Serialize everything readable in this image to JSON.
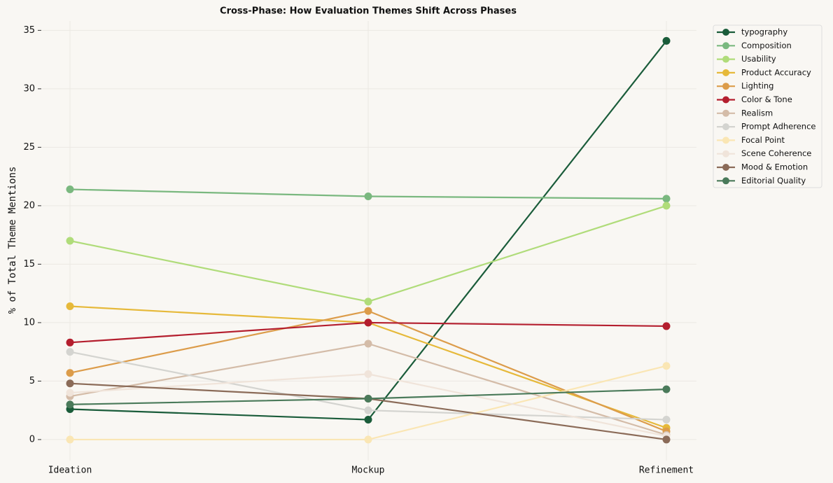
{
  "chart_data": {
    "type": "line",
    "title": "Cross-Phase: How Evaluation Themes Shift Across Phases",
    "y_label": "% of Total Theme Mentions",
    "categories": [
      "Ideation",
      "Mockup",
      "Refinement"
    ],
    "ylim": [
      -1.8,
      35.8
    ],
    "yticks": [
      0,
      5,
      10,
      15,
      20,
      25,
      30,
      35
    ],
    "grid": true,
    "legend": "outside-right",
    "series": [
      {
        "name": "typography",
        "color": "#1a5c3a",
        "values": [
          2.6,
          1.7,
          34.1
        ]
      },
      {
        "name": "Composition",
        "color": "#7ab87f",
        "values": [
          21.4,
          20.8,
          20.6
        ]
      },
      {
        "name": "Usability",
        "color": "#b0dc7a",
        "values": [
          17.0,
          11.8,
          20.0
        ]
      },
      {
        "name": "Product Accuracy",
        "color": "#e6b93a",
        "values": [
          11.4,
          10.0,
          1.0
        ]
      },
      {
        "name": "Lighting",
        "color": "#dc9c4a",
        "values": [
          5.7,
          11.0,
          0.7
        ]
      },
      {
        "name": "Color & Tone",
        "color": "#b41e2e",
        "values": [
          8.3,
          10.0,
          9.7
        ]
      },
      {
        "name": "Realism",
        "color": "#d4bca8",
        "values": [
          3.7,
          8.2,
          0.4
        ]
      },
      {
        "name": "Prompt Adherence",
        "color": "#d4d4d0",
        "values": [
          7.5,
          2.5,
          1.7
        ]
      },
      {
        "name": "Focal Point",
        "color": "#fae6b4",
        "values": [
          0,
          0,
          6.3
        ]
      },
      {
        "name": "Scene Coherence",
        "color": "#f0e4da",
        "values": [
          4.0,
          5.6,
          0.3
        ]
      },
      {
        "name": "Mood & Emotion",
        "color": "#8b6b58",
        "values": [
          4.8,
          3.5,
          0
        ]
      },
      {
        "name": "Editorial Quality",
        "color": "#4a7a5a",
        "values": [
          3.0,
          3.5,
          4.3
        ]
      }
    ]
  }
}
